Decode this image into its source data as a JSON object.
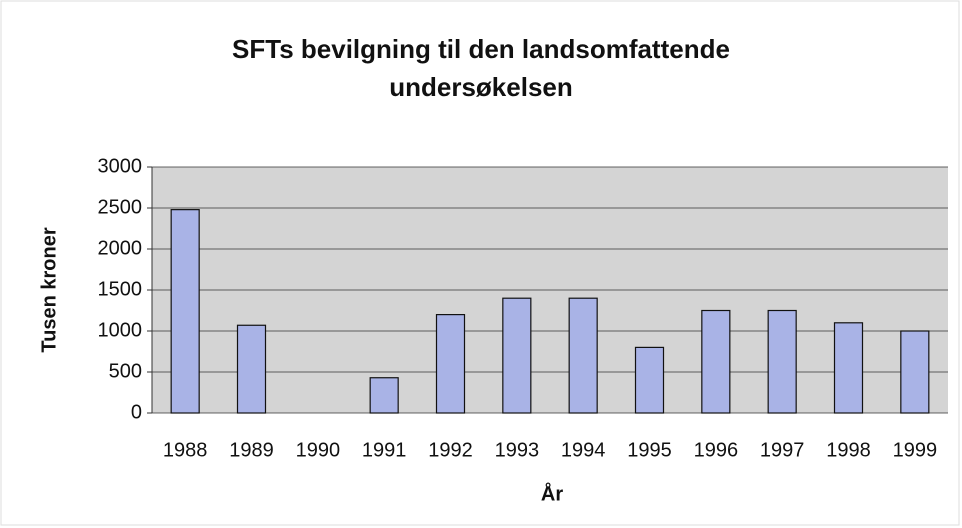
{
  "chart_data": {
    "type": "bar",
    "title": "SFTs bevilgning til den landsomfattende undersøkelsen",
    "x_label": "År",
    "y_label": "Tusen kroner",
    "categories": [
      "1988",
      "1989",
      "1990",
      "1991",
      "1992",
      "1993",
      "1994",
      "1995",
      "1996",
      "1997",
      "1998",
      "1999"
    ],
    "values": [
      2480,
      1070,
      0,
      430,
      1200,
      1400,
      1400,
      800,
      1250,
      1250,
      1100,
      1000
    ],
    "color": "#a9b3e6",
    "ylim": [
      0,
      3000
    ],
    "yticks": [
      0,
      500,
      1000,
      1500,
      2000,
      2500,
      3000
    ],
    "grid": true
  }
}
